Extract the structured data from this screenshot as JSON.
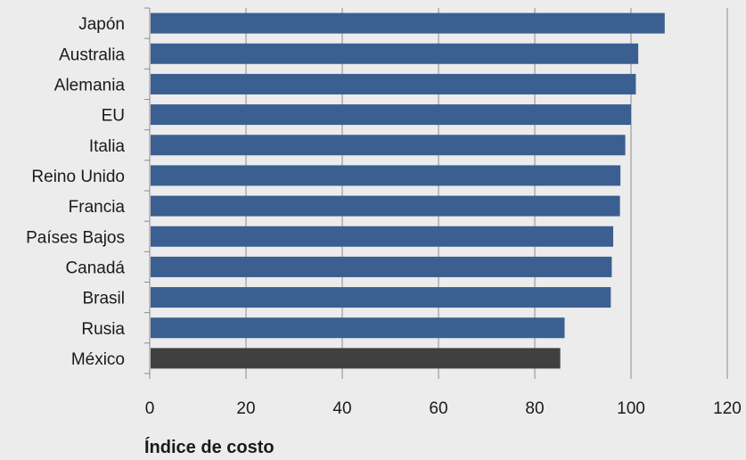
{
  "chart_data": {
    "type": "bar",
    "orientation": "horizontal",
    "categories": [
      "Japón",
      "Australia",
      "Alemania",
      "EU",
      "Italia",
      "Reino Unido",
      "Francia",
      "Países Bajos",
      "Canadá",
      "Brasil",
      "Rusia",
      "México"
    ],
    "values": [
      107,
      101.5,
      101,
      100,
      98.8,
      97.8,
      97.7,
      96.3,
      96,
      95.8,
      86.2,
      85.3
    ],
    "xlabel": "Índice de costo",
    "xlim": [
      0,
      120
    ],
    "xticks": [
      0,
      20,
      40,
      60,
      80,
      100,
      120
    ],
    "grid": "vertical",
    "colors": {
      "default_bar": "#3b5f91",
      "highlight_bar": "#404040",
      "highlight_category": "México",
      "gridline": "#8c8c8c",
      "axis": "#8c8c8c",
      "background": "#ececec"
    }
  }
}
